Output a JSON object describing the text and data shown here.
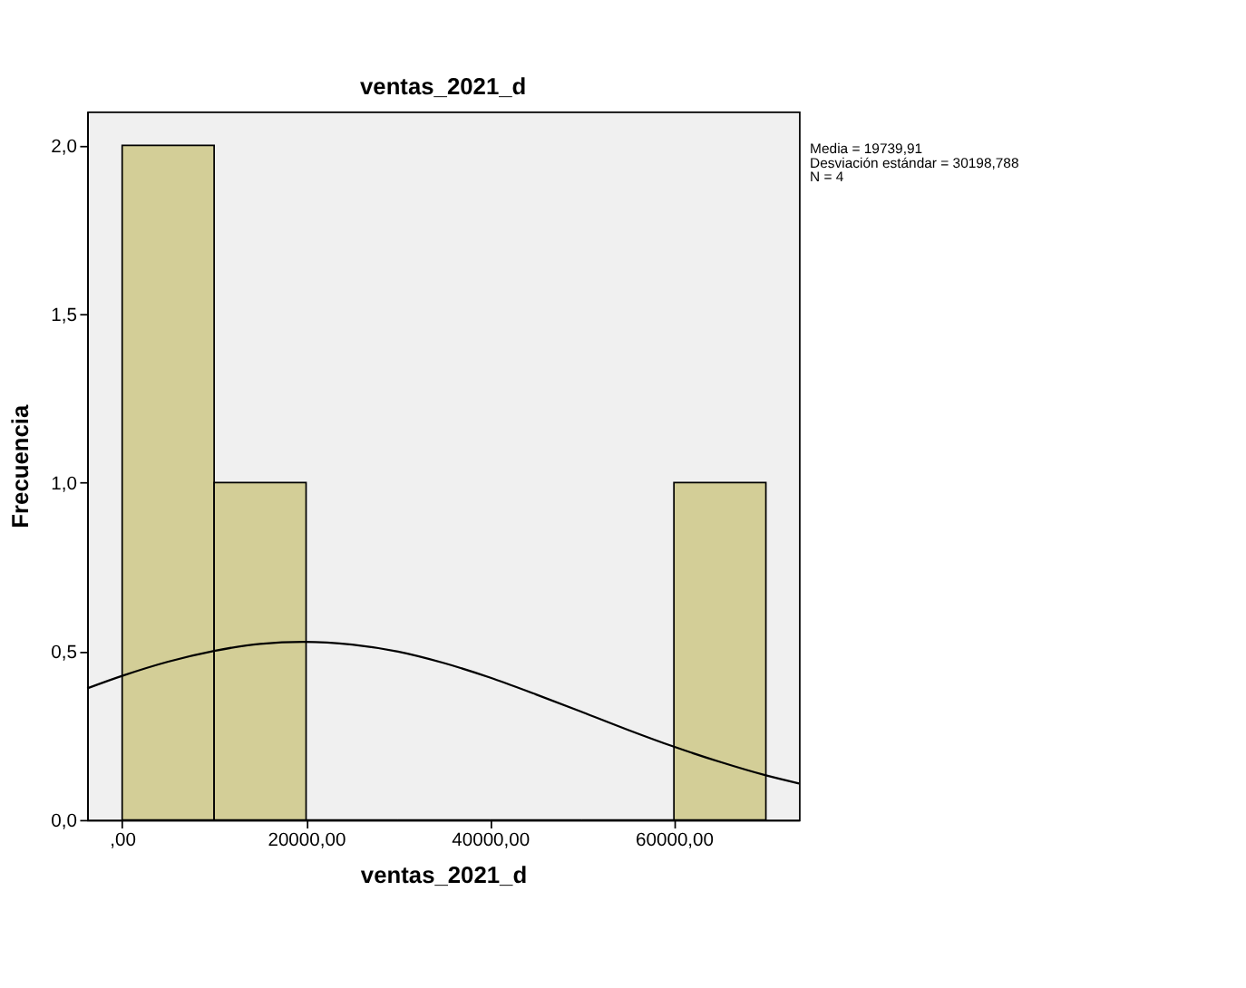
{
  "chart_data": {
    "type": "histogram",
    "title": "ventas_2021_d",
    "xlabel": "ventas_2021_d",
    "ylabel": "Frecuencia",
    "bins": [
      0,
      10000,
      20000,
      30000,
      40000,
      50000,
      60000,
      70000
    ],
    "values": [
      2,
      1,
      0,
      0,
      0,
      0,
      1
    ],
    "color": "#d3ce97",
    "series": [
      {
        "type": "line",
        "color": "#000000",
        "x": [
          -3800,
          0,
          5000,
          10000,
          15000,
          19740,
          25000,
          30000,
          35000,
          40000,
          45000,
          50000,
          55000,
          60000,
          65000,
          70000,
          73600
        ],
        "values": [
          0.39,
          0.427,
          0.469,
          0.501,
          0.522,
          0.528,
          0.52,
          0.499,
          0.465,
          0.422,
          0.372,
          0.32,
          0.267,
          0.217,
          0.172,
          0.132,
          0.108
        ]
      }
    ],
    "xlim": [
      -3800,
      73600
    ],
    "ylim": [
      0,
      2.1
    ],
    "xticks": [
      {
        "value": 0,
        "label": ",00"
      },
      {
        "value": 20000,
        "label": "20000,00"
      },
      {
        "value": 40000,
        "label": "40000,00"
      },
      {
        "value": 60000,
        "label": "60000,00"
      }
    ],
    "yticks": [
      {
        "value": 0,
        "label": "0,0"
      },
      {
        "value": 0.5,
        "label": "0,5"
      },
      {
        "value": 1,
        "label": "1,0"
      },
      {
        "value": 1.5,
        "label": "1,5"
      },
      {
        "value": 2,
        "label": "2,0"
      }
    ],
    "annotations": [
      "Media = 19739,91",
      "Desviación estándar = 30198,788",
      "N = 4"
    ],
    "grid": false
  }
}
